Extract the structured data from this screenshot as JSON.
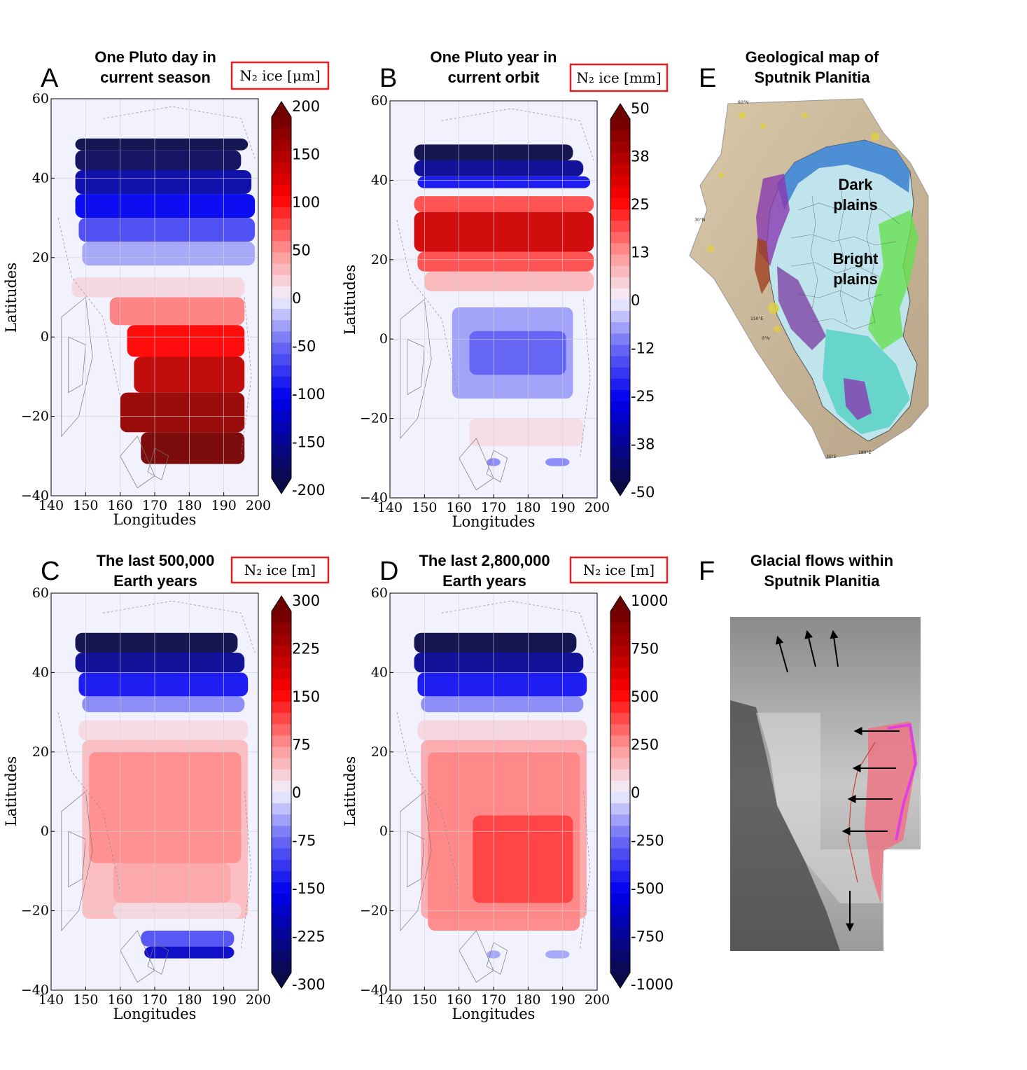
{
  "chart_data": [
    {
      "type": "heatmap",
      "panel_letter": "A",
      "title_lines": [
        "One Pluto day in",
        "current season"
      ],
      "unit_label": "N₂ ice [μm]",
      "xlabel": "Longitudes",
      "ylabel": "Latitudes",
      "xlim": [
        140,
        200
      ],
      "ylim": [
        -40,
        60
      ],
      "xticks": [
        "140",
        "150",
        "160",
        "170",
        "180",
        "190",
        "200"
      ],
      "yticks": [
        "60",
        "40",
        "20",
        "0",
        "−20",
        "−40"
      ],
      "colorbar_ticks": [
        "200",
        "150",
        "100",
        "50",
        "0",
        "-50",
        "-100",
        "-150",
        "-200"
      ],
      "colorbar_range": [
        -200,
        200
      ],
      "field": [
        {
          "lat": [
            50,
            47
          ],
          "lon": [
            147,
            197
          ],
          "value": -200
        },
        {
          "lat": [
            47,
            42
          ],
          "lon": [
            147,
            195
          ],
          "value": -190
        },
        {
          "lat": [
            42,
            36
          ],
          "lon": [
            147,
            198
          ],
          "value": -150
        },
        {
          "lat": [
            36,
            30
          ],
          "lon": [
            147,
            199
          ],
          "value": -110
        },
        {
          "lat": [
            30,
            24
          ],
          "lon": [
            148,
            199
          ],
          "value": -70
        },
        {
          "lat": [
            24,
            18
          ],
          "lon": [
            149,
            199
          ],
          "value": -30
        },
        {
          "lat": [
            15,
            10
          ],
          "lon": [
            146,
            196
          ],
          "value": 15
        },
        {
          "lat": [
            10,
            3
          ],
          "lon": [
            157,
            196
          ],
          "value": 60
        },
        {
          "lat": [
            3,
            -5
          ],
          "lon": [
            162,
            196
          ],
          "value": 110
        },
        {
          "lat": [
            -5,
            -14
          ],
          "lon": [
            164,
            196
          ],
          "value": 150
        },
        {
          "lat": [
            -14,
            -24
          ],
          "lon": [
            160,
            196
          ],
          "value": 175
        },
        {
          "lat": [
            -24,
            -32
          ],
          "lon": [
            166,
            196
          ],
          "value": 195
        }
      ]
    },
    {
      "type": "heatmap",
      "panel_letter": "B",
      "title_lines": [
        "One Pluto year in",
        "current orbit"
      ],
      "unit_label": "N₂ ice [mm]",
      "xlabel": "Longitudes",
      "ylabel": "Latitudes",
      "xlim": [
        140,
        200
      ],
      "ylim": [
        -40,
        60
      ],
      "xticks": [
        "140",
        "150",
        "160",
        "170",
        "180",
        "190",
        "200"
      ],
      "yticks": [
        "60",
        "40",
        "20",
        "0",
        "−20",
        "−40"
      ],
      "colorbar_ticks": [
        "50",
        "38",
        "25",
        "13",
        "0",
        "-12",
        "-25",
        "-38",
        "-50"
      ],
      "colorbar_range": [
        -50,
        50
      ],
      "field": [
        {
          "lat": [
            49,
            45
          ],
          "lon": [
            147,
            193
          ],
          "value": -50
        },
        {
          "lat": [
            45,
            41
          ],
          "lon": [
            147,
            196
          ],
          "value": -40
        },
        {
          "lat": [
            41,
            38
          ],
          "lon": [
            148,
            198
          ],
          "value": -25
        },
        {
          "lat": [
            36,
            32
          ],
          "lon": [
            147,
            199
          ],
          "value": 20
        },
        {
          "lat": [
            32,
            22
          ],
          "lon": [
            147,
            199
          ],
          "value": 35
        },
        {
          "lat": [
            22,
            17
          ],
          "lon": [
            148,
            199
          ],
          "value": 20
        },
        {
          "lat": [
            17,
            12
          ],
          "lon": [
            150,
            199
          ],
          "value": 8
        },
        {
          "lat": [
            8,
            -15
          ],
          "lon": [
            158,
            193
          ],
          "value": -8
        },
        {
          "lat": [
            2,
            -9
          ],
          "lon": [
            163,
            191
          ],
          "value": -14
        },
        {
          "lat": [
            -20,
            -27
          ],
          "lon": [
            163,
            196
          ],
          "value": 3
        },
        {
          "lat": [
            -30,
            -32
          ],
          "lon": [
            168,
            172
          ],
          "value": -10
        },
        {
          "lat": [
            -30,
            -32
          ],
          "lon": [
            185,
            192
          ],
          "value": -10
        }
      ]
    },
    {
      "type": "heatmap",
      "panel_letter": "C",
      "title_lines": [
        "The last 500,000",
        "Earth years"
      ],
      "unit_label": "N₂ ice [m]",
      "xlabel": "Longitudes",
      "ylabel": "Latitudes",
      "xlim": [
        140,
        200
      ],
      "ylim": [
        -40,
        60
      ],
      "xticks": [
        "140",
        "150",
        "160",
        "170",
        "180",
        "190",
        "200"
      ],
      "yticks": [
        "60",
        "40",
        "20",
        "0",
        "−20",
        "−40"
      ],
      "colorbar_ticks": [
        "300",
        "225",
        "150",
        "75",
        "0",
        "-75",
        "-150",
        "-225",
        "-300"
      ],
      "colorbar_range": [
        -300,
        300
      ],
      "field": [
        {
          "lat": [
            50,
            45
          ],
          "lon": [
            147,
            194
          ],
          "value": -300
        },
        {
          "lat": [
            45,
            40
          ],
          "lon": [
            147,
            196
          ],
          "value": -240
        },
        {
          "lat": [
            40,
            34
          ],
          "lon": [
            148,
            197
          ],
          "value": -150
        },
        {
          "lat": [
            34,
            30
          ],
          "lon": [
            149,
            196
          ],
          "value": -60
        },
        {
          "lat": [
            28,
            23
          ],
          "lon": [
            148,
            197
          ],
          "value": 20
        },
        {
          "lat": [
            23,
            -22
          ],
          "lon": [
            149,
            197
          ],
          "value": 45
        },
        {
          "lat": [
            20,
            -8
          ],
          "lon": [
            151,
            195
          ],
          "value": 80
        },
        {
          "lat": [
            -8,
            -18
          ],
          "lon": [
            158,
            192
          ],
          "value": 60
        },
        {
          "lat": [
            -18,
            -22
          ],
          "lon": [
            158,
            195
          ],
          "value": 20
        },
        {
          "lat": [
            -25,
            -29
          ],
          "lon": [
            166,
            193
          ],
          "value": -100
        },
        {
          "lat": [
            -29,
            -32
          ],
          "lon": [
            167,
            193
          ],
          "value": -200
        }
      ]
    },
    {
      "type": "heatmap",
      "panel_letter": "D",
      "title_lines": [
        "The last 2,800,000",
        "Earth years"
      ],
      "unit_label": "N₂ ice [m]",
      "xlabel": "Longitudes",
      "ylabel": "Latitudes",
      "xlim": [
        140,
        200
      ],
      "ylim": [
        -40,
        60
      ],
      "xticks": [
        "140",
        "150",
        "160",
        "170",
        "180",
        "190",
        "200"
      ],
      "yticks": [
        "60",
        "40",
        "20",
        "0",
        "−20",
        "−40"
      ],
      "colorbar_ticks": [
        "1000",
        "750",
        "500",
        "250",
        "0",
        "-250",
        "-500",
        "-750",
        "-1000"
      ],
      "colorbar_range": [
        -1000,
        1000
      ],
      "field": [
        {
          "lat": [
            50,
            45
          ],
          "lon": [
            147,
            194
          ],
          "value": -1000
        },
        {
          "lat": [
            45,
            40
          ],
          "lon": [
            147,
            196
          ],
          "value": -800
        },
        {
          "lat": [
            40,
            34
          ],
          "lon": [
            148,
            197
          ],
          "value": -500
        },
        {
          "lat": [
            34,
            30
          ],
          "lon": [
            149,
            196
          ],
          "value": -200
        },
        {
          "lat": [
            28,
            23
          ],
          "lon": [
            148,
            197
          ],
          "value": 80
        },
        {
          "lat": [
            23,
            -22
          ],
          "lon": [
            149,
            197
          ],
          "value": 200
        },
        {
          "lat": [
            20,
            -25
          ],
          "lon": [
            151,
            195
          ],
          "value": 280
        },
        {
          "lat": [
            4,
            -18
          ],
          "lon": [
            164,
            193
          ],
          "value": 420
        },
        {
          "lat": [
            -30,
            -32
          ],
          "lon": [
            168,
            172
          ],
          "value": -150
        },
        {
          "lat": [
            -30,
            -32
          ],
          "lon": [
            185,
            192
          ],
          "value": -150
        }
      ]
    }
  ],
  "map_panels": {
    "E": {
      "letter": "E",
      "title_lines": [
        "Geological map of",
        "Sputnik Planitia"
      ],
      "labels": [
        "Dark",
        "plains",
        "Bright",
        "plains"
      ],
      "small_labels": [
        "60°N",
        "30°N",
        "150°E",
        "0°N",
        "30°S",
        "180°E"
      ]
    },
    "F": {
      "letter": "F",
      "title_lines": [
        "Glacial flows within",
        "Sputnik Planitia"
      ]
    }
  },
  "colors": {
    "cmap_low": "#0a0a4a",
    "cmap_mid_low": "#0000f0",
    "cmap_zero": "#f2f2ff",
    "cmap_mid_high": "#ff0000",
    "cmap_high": "#6e0000",
    "unit_box": "#e02020"
  }
}
